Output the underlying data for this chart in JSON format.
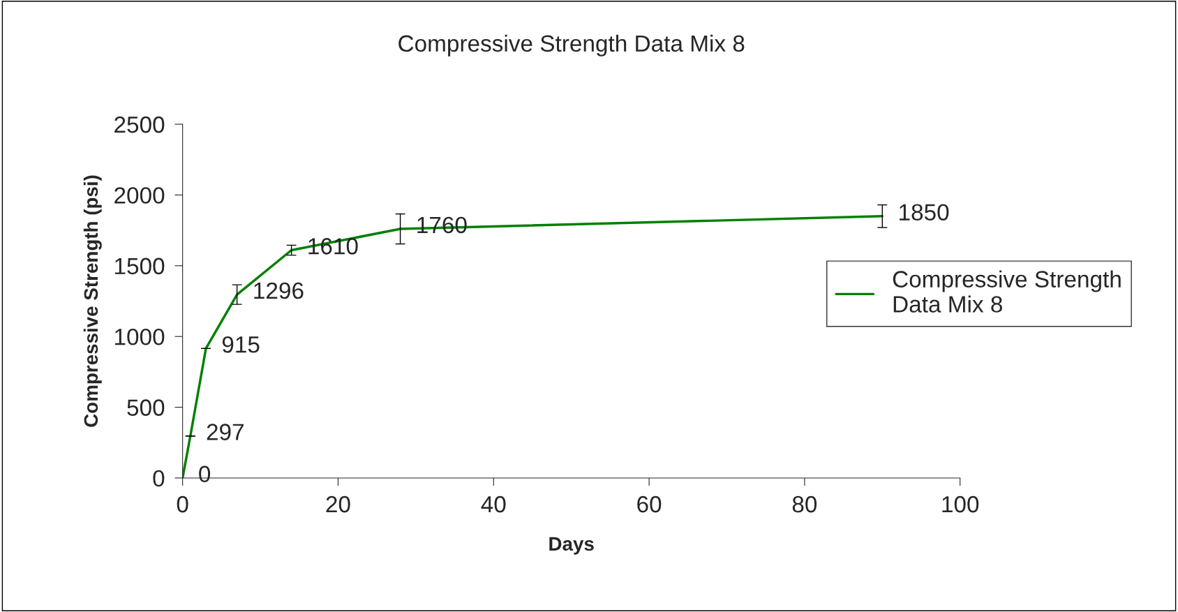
{
  "chart_data": {
    "type": "line",
    "title": "Compressive Strength Data Mix 8",
    "xlabel": "Days",
    "ylabel": "Compressive Strength (psi)",
    "x": [
      0,
      1,
      3,
      7,
      14,
      28,
      90
    ],
    "series": [
      {
        "name": "Compressive Strength Data Mix 8",
        "color": "#008000",
        "values": [
          0,
          297,
          915,
          1296,
          1610,
          1760,
          1850
        ],
        "errors": [
          null,
          0,
          0,
          69,
          35,
          106,
          80
        ]
      }
    ],
    "data_labels": true,
    "xlim": [
      0,
      100
    ],
    "xticks": [
      0,
      20,
      40,
      60,
      80,
      100
    ],
    "ylim": [
      0,
      2500
    ],
    "yticks": [
      0,
      500,
      1000,
      1500,
      2000,
      2500
    ],
    "grid": false,
    "legend": "right",
    "marker": "none",
    "line_style": "solid"
  }
}
